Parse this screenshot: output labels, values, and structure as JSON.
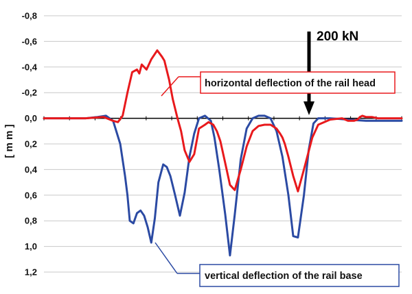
{
  "chart_data": {
    "type": "line",
    "ylabel": "[ m m ]",
    "y_tick_labels": [
      "-0,8",
      "-0,6",
      "-0,4",
      "-0,2",
      "0,0",
      "0,2",
      "0,4",
      "0,6",
      "0,8",
      "1,0",
      "1,2"
    ],
    "ylim": [
      -0.8,
      1.2
    ],
    "y_inverted": true,
    "grid": true,
    "x_axis_labels": false,
    "load_label": "200 kN",
    "series": [
      {
        "name": "horizontal deflection of the rail head",
        "color": "#e8191c",
        "x": [
          0,
          35,
          50,
          58,
          62,
          66,
          70,
          74,
          78,
          80,
          82,
          86,
          90,
          95,
          99,
          101,
          105,
          108,
          112,
          115,
          118,
          122,
          126,
          130,
          135,
          138,
          140,
          142,
          145,
          148,
          152,
          156,
          160,
          165,
          170,
          175,
          180,
          185,
          190,
          195,
          198,
          200,
          202,
          205,
          209,
          213,
          218,
          225,
          230,
          240,
          250,
          255,
          260,
          263,
          265,
          267,
          270,
          275,
          280,
          290,
          300
        ],
        "y": [
          0,
          0,
          -0.01,
          0.02,
          0.03,
          -0.02,
          -0.2,
          -0.36,
          -0.38,
          -0.35,
          -0.42,
          -0.38,
          -0.46,
          -0.53,
          -0.48,
          -0.45,
          -0.3,
          -0.15,
          0,
          0.1,
          0.25,
          0.34,
          0.28,
          0.08,
          0.05,
          0.03,
          0.04,
          0.05,
          0.1,
          0.18,
          0.35,
          0.52,
          0.56,
          0.4,
          0.22,
          0.1,
          0.06,
          0.05,
          0.05,
          0.08,
          0.12,
          0.15,
          0.2,
          0.3,
          0.45,
          0.57,
          0.4,
          0.15,
          0.05,
          0.01,
          0,
          0.02,
          0.02,
          0.01,
          -0.01,
          -0.02,
          -0.01,
          -0.01,
          0,
          0,
          0
        ]
      },
      {
        "name": "vertical deflection of the rail base",
        "color": "#2b4aa3",
        "x": [
          0,
          35,
          45,
          52,
          58,
          64,
          68,
          70,
          72,
          75,
          78,
          81,
          84,
          87,
          90,
          93,
          96,
          100,
          103,
          106,
          110,
          114,
          118,
          122,
          126,
          130,
          135,
          140,
          143,
          147,
          152,
          156,
          160,
          165,
          170,
          175,
          180,
          185,
          190,
          195,
          200,
          205,
          209,
          213,
          218,
          222,
          226,
          230,
          240,
          255,
          270,
          285,
          300
        ],
        "y": [
          0,
          0,
          -0.01,
          -0.02,
          0.02,
          0.2,
          0.45,
          0.6,
          0.8,
          0.82,
          0.74,
          0.72,
          0.76,
          0.85,
          0.97,
          0.78,
          0.5,
          0.36,
          0.38,
          0.45,
          0.6,
          0.76,
          0.58,
          0.3,
          0.12,
          0,
          -0.02,
          0.02,
          0.15,
          0.4,
          0.75,
          1.07,
          0.75,
          0.32,
          0.08,
          0,
          -0.02,
          -0.02,
          0,
          0.1,
          0.3,
          0.6,
          0.92,
          0.93,
          0.6,
          0.25,
          0.04,
          0,
          0,
          0.01,
          0.02,
          0.02,
          0.02
        ]
      }
    ]
  }
}
